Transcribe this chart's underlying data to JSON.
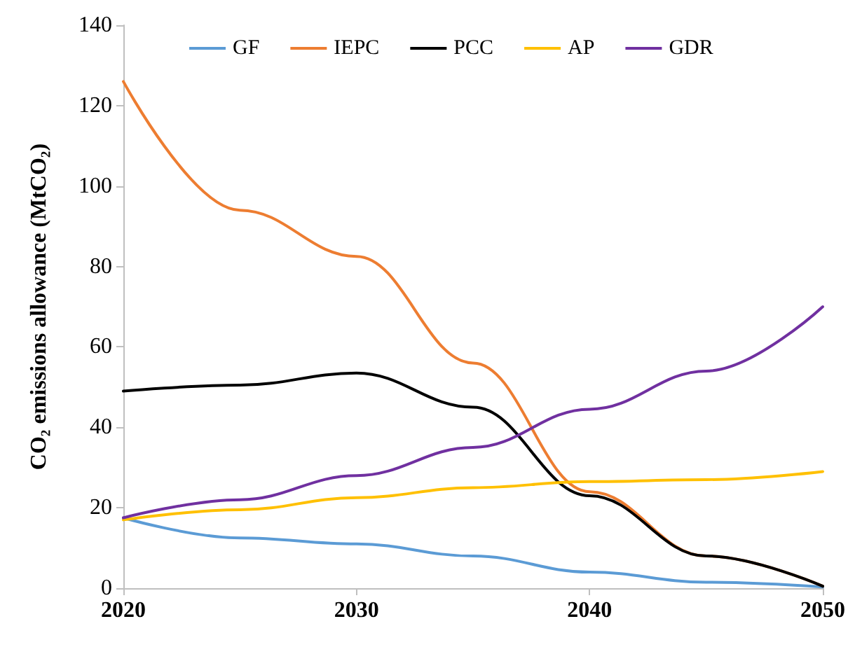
{
  "chart_data": {
    "type": "line",
    "ylabel": "CO₂ emissions allowance (MtCO₂)",
    "x": [
      2020,
      2025,
      2030,
      2035,
      2040,
      2045,
      2050
    ],
    "series": [
      {
        "name": "GF",
        "color": "#5b9bd5",
        "values": [
          17.5,
          12.5,
          11,
          8,
          4,
          1.5,
          0.3
        ]
      },
      {
        "name": "IEPC",
        "color": "#ed7d31",
        "values": [
          126,
          94,
          82.5,
          56,
          24,
          8,
          0.5
        ]
      },
      {
        "name": "PCC",
        "color": "#000000",
        "values": [
          49,
          50.5,
          53.5,
          45,
          23,
          8,
          0.5
        ]
      },
      {
        "name": "AP",
        "color": "#ffc000",
        "values": [
          17,
          19.5,
          22.5,
          25,
          26.5,
          27,
          29
        ]
      },
      {
        "name": "GDR",
        "color": "#7030a0",
        "values": [
          17.5,
          22,
          28,
          35,
          44.5,
          54,
          70
        ]
      }
    ],
    "xlim": [
      2020,
      2050
    ],
    "xticks": [
      2020,
      2030,
      2040,
      2050
    ],
    "ylim": [
      0,
      140
    ],
    "yticks": [
      0,
      20,
      40,
      60,
      80,
      100,
      120,
      140
    ],
    "grid": false,
    "legend": "top",
    "marker": "none",
    "line_style": "solid"
  }
}
